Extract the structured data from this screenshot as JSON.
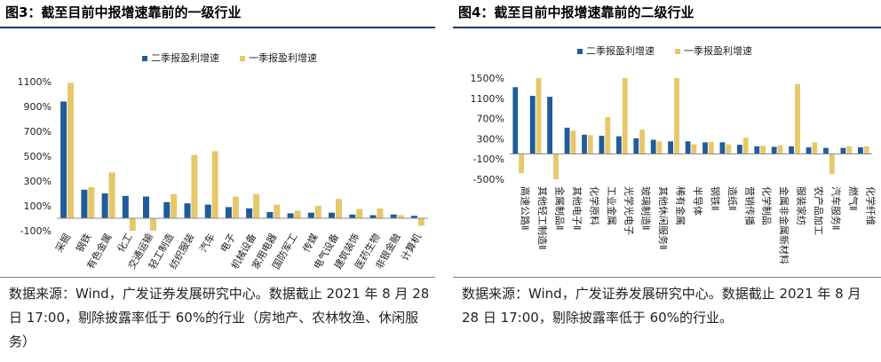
{
  "panels": [
    {
      "title": "图3：截至目前中报增速靠前的一级行业",
      "source": "数据来源：Wind，广发证券发展研究中心。数据截止 2021 年 8 月 28 日 17:00，剔除披露率低于 60%的行业（房地产、农林牧渔、休闲服务）"
    },
    {
      "title": "图4：截至目前中报增速靠前的二级行业",
      "source": "数据来源：Wind，广发证券发展研究中心。数据截止 2021 年 8 月 28 日 17:00，剔除披露率低于 60%的行业。"
    }
  ],
  "colors": {
    "q2": "#1f5c99",
    "q1": "#e6c86a",
    "rule": "#1f3864"
  },
  "chart_data": [
    {
      "type": "bar",
      "title": "截至目前中报增速靠前的一级行业",
      "categories": [
        "采掘",
        "钢铁",
        "有色金属",
        "化工",
        "交通运输",
        "轻工制造",
        "纺织服装",
        "汽车",
        "电子",
        "机械设备",
        "家用电器",
        "国防军工",
        "传媒",
        "电气设备",
        "建筑装饰",
        "医药生物",
        "非银金融",
        "计算机"
      ],
      "series": [
        {
          "name": "二季报盈利增速",
          "values": [
            940,
            230,
            200,
            180,
            175,
            130,
            120,
            110,
            90,
            80,
            50,
            40,
            45,
            45,
            30,
            25,
            30,
            20
          ]
        },
        {
          "name": "一季报盈利增速",
          "values": [
            1090,
            250,
            370,
            -100,
            -100,
            195,
            510,
            540,
            175,
            195,
            110,
            60,
            100,
            155,
            75,
            80,
            25,
            -60
          ]
        }
      ],
      "yticks": [
        -100,
        100,
        300,
        500,
        700,
        900,
        1100
      ],
      "ytick_labels": [
        "-100%",
        "100%",
        "300%",
        "500%",
        "700%",
        "900%",
        "1100%"
      ],
      "ylim": [
        -100,
        1100
      ],
      "legend": [
        "二季报盈利增速",
        "一季报盈利增速"
      ]
    },
    {
      "type": "bar",
      "title": "截至目前中报增速靠前的二级行业",
      "categories": [
        "高速公路Ⅱ",
        "其他轻工制造Ⅱ",
        "金属制品Ⅱ",
        "其他电子Ⅱ",
        "化学原料",
        "工业金属",
        "光学光电子",
        "玻璃制造Ⅱ",
        "其他休闲服务Ⅱ",
        "稀有金属",
        "半导体",
        "钢铁Ⅱ",
        "造纸Ⅱ",
        "营销传播",
        "化学制品",
        "金属非金属新材料",
        "服装家纺",
        "农产品加工",
        "汽车服务Ⅱ",
        "燃气Ⅱ",
        "化学纤维"
      ],
      "series": [
        {
          "name": "二季报盈利增速",
          "values": [
            1320,
            1150,
            1130,
            520,
            380,
            360,
            350,
            310,
            280,
            250,
            250,
            230,
            230,
            180,
            150,
            140,
            150,
            130,
            120,
            120,
            130
          ]
        },
        {
          "name": "一季报盈利增速",
          "values": [
            -380,
            1500,
            -500,
            460,
            370,
            730,
            1500,
            480,
            250,
            1500,
            190,
            240,
            190,
            320,
            160,
            170,
            1380,
            230,
            -400,
            150,
            150
          ]
        }
      ],
      "yticks": [
        -500,
        -100,
        300,
        700,
        1100,
        1500
      ],
      "ytick_labels": [
        "-500%",
        "-100%",
        "300%",
        "700%",
        "1100%",
        "1500%"
      ],
      "ylim": [
        -500,
        1500
      ],
      "legend": [
        "二季报盈利增速",
        "一季报盈利增速"
      ]
    }
  ]
}
